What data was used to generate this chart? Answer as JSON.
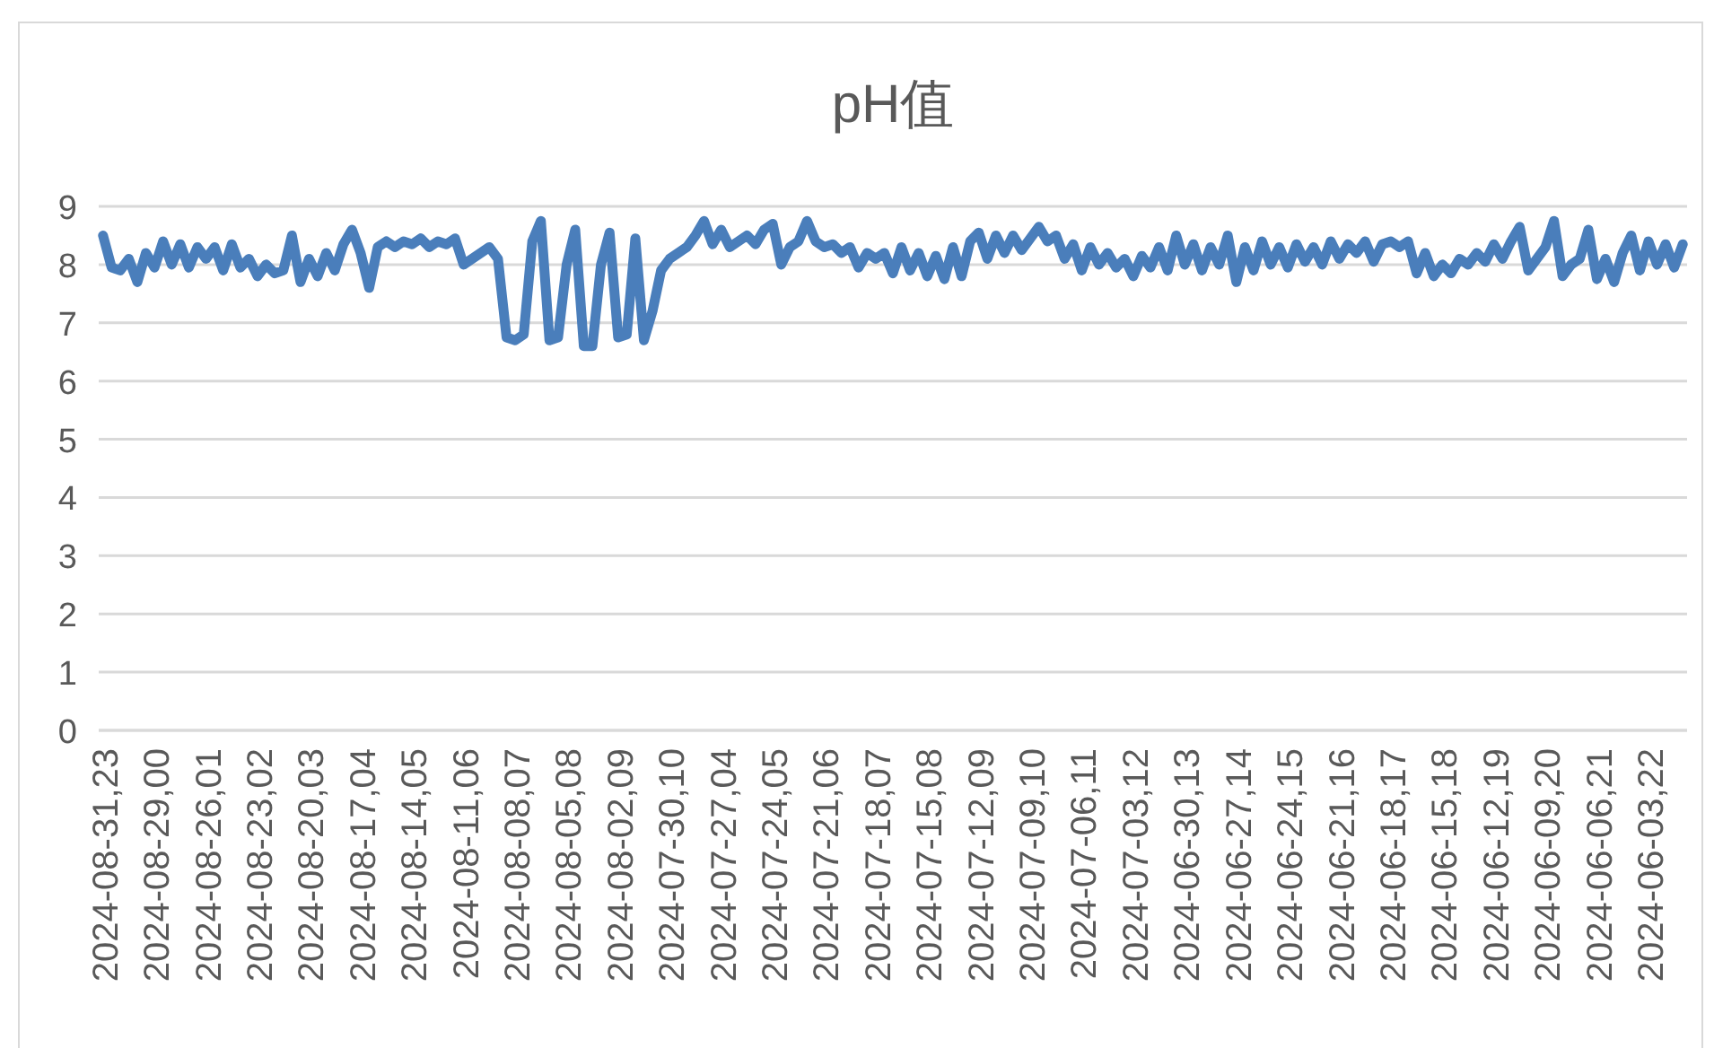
{
  "chart_data": {
    "type": "line",
    "title": "pH值",
    "color": "#4a7ebb",
    "grid": "y",
    "ylim": [
      0,
      9
    ],
    "yticks": [
      0,
      1,
      2,
      3,
      4,
      5,
      6,
      7,
      8,
      9
    ],
    "categories": [
      "2024-08-31,23",
      null,
      null,
      null,
      null,
      null,
      "2024-08-29,00",
      null,
      null,
      null,
      null,
      null,
      "2024-08-26,01",
      null,
      null,
      null,
      null,
      null,
      "2024-08-23,02",
      null,
      null,
      null,
      null,
      null,
      "2024-08-20,03",
      null,
      null,
      null,
      null,
      null,
      "2024-08-17,04",
      null,
      null,
      null,
      null,
      null,
      "2024-08-14,05",
      null,
      null,
      null,
      null,
      null,
      "2024-08-11,06",
      null,
      null,
      null,
      null,
      null,
      "2024-08-08,07",
      null,
      null,
      null,
      null,
      null,
      "2024-08-05,08",
      null,
      null,
      null,
      null,
      null,
      "2024-08-02,09",
      null,
      null,
      null,
      null,
      null,
      "2024-07-30,10",
      null,
      null,
      null,
      null,
      null,
      "2024-07-27,04",
      null,
      null,
      null,
      null,
      null,
      "2024-07-24,05",
      null,
      null,
      null,
      null,
      null,
      "2024-07-21,06",
      null,
      null,
      null,
      null,
      null,
      "2024-07-18,07",
      null,
      null,
      null,
      null,
      null,
      "2024-07-15,08",
      null,
      null,
      null,
      null,
      null,
      "2024-07-12,09",
      null,
      null,
      null,
      null,
      null,
      "2024-07-09,10",
      null,
      null,
      null,
      null,
      null,
      "2024-07-06,11",
      null,
      null,
      null,
      null,
      null,
      "2024-07-03,12",
      null,
      null,
      null,
      null,
      null,
      "2024-06-30,13",
      null,
      null,
      null,
      null,
      null,
      "2024-06-27,14",
      null,
      null,
      null,
      null,
      null,
      "2024-06-24,15",
      null,
      null,
      null,
      null,
      null,
      "2024-06-21,16",
      null,
      null,
      null,
      null,
      null,
      "2024-06-18,17",
      null,
      null,
      null,
      null,
      null,
      "2024-06-15,18",
      null,
      null,
      null,
      null,
      null,
      "2024-06-12,19",
      null,
      null,
      null,
      null,
      null,
      "2024-06-09,20",
      null,
      null,
      null,
      null,
      null,
      "2024-06-06,21",
      null,
      null,
      null,
      null,
      null,
      "2024-06-03,22",
      null,
      null,
      null,
      null
    ],
    "values": [
      8.5,
      7.95,
      7.9,
      8.1,
      7.7,
      8.2,
      7.95,
      8.4,
      8.0,
      8.35,
      7.95,
      8.3,
      8.1,
      8.3,
      7.9,
      8.35,
      7.95,
      8.1,
      7.8,
      8.0,
      7.85,
      7.9,
      8.5,
      7.7,
      8.1,
      7.8,
      8.2,
      7.9,
      8.35,
      8.6,
      8.2,
      7.6,
      8.3,
      8.4,
      8.3,
      8.4,
      8.35,
      8.45,
      8.3,
      8.4,
      8.35,
      8.45,
      8.0,
      8.1,
      8.2,
      8.3,
      8.1,
      6.75,
      6.7,
      6.8,
      8.4,
      8.75,
      6.7,
      6.75,
      8.0,
      8.6,
      6.6,
      6.6,
      8.0,
      8.55,
      6.75,
      6.8,
      8.45,
      6.7,
      7.2,
      7.9,
      8.1,
      8.2,
      8.3,
      8.5,
      8.75,
      8.35,
      8.6,
      8.3,
      8.4,
      8.5,
      8.35,
      8.6,
      8.7,
      8.0,
      8.3,
      8.4,
      8.75,
      8.4,
      8.3,
      8.35,
      8.2,
      8.3,
      7.95,
      8.2,
      8.1,
      8.2,
      7.85,
      8.3,
      7.9,
      8.2,
      7.8,
      8.15,
      7.75,
      8.3,
      7.8,
      8.4,
      8.55,
      8.1,
      8.5,
      8.2,
      8.5,
      8.25,
      8.45,
      8.65,
      8.4,
      8.5,
      8.1,
      8.35,
      7.9,
      8.3,
      8.0,
      8.2,
      7.95,
      8.1,
      7.8,
      8.15,
      7.95,
      8.3,
      7.9,
      8.5,
      8.0,
      8.35,
      7.9,
      8.3,
      8.0,
      8.5,
      7.7,
      8.3,
      7.9,
      8.4,
      8.0,
      8.3,
      7.95,
      8.35,
      8.05,
      8.3,
      8.0,
      8.4,
      8.1,
      8.35,
      8.2,
      8.4,
      8.05,
      8.35,
      8.4,
      8.3,
      8.4,
      7.85,
      8.2,
      7.8,
      8.0,
      7.85,
      8.1,
      8.0,
      8.2,
      8.05,
      8.35,
      8.1,
      8.4,
      8.65,
      7.9,
      8.1,
      8.3,
      8.75,
      7.8,
      8.0,
      8.1,
      8.6,
      7.75,
      8.1,
      7.7,
      8.2,
      8.5,
      7.9,
      8.4,
      8.0,
      8.35,
      7.95,
      8.35
    ]
  }
}
